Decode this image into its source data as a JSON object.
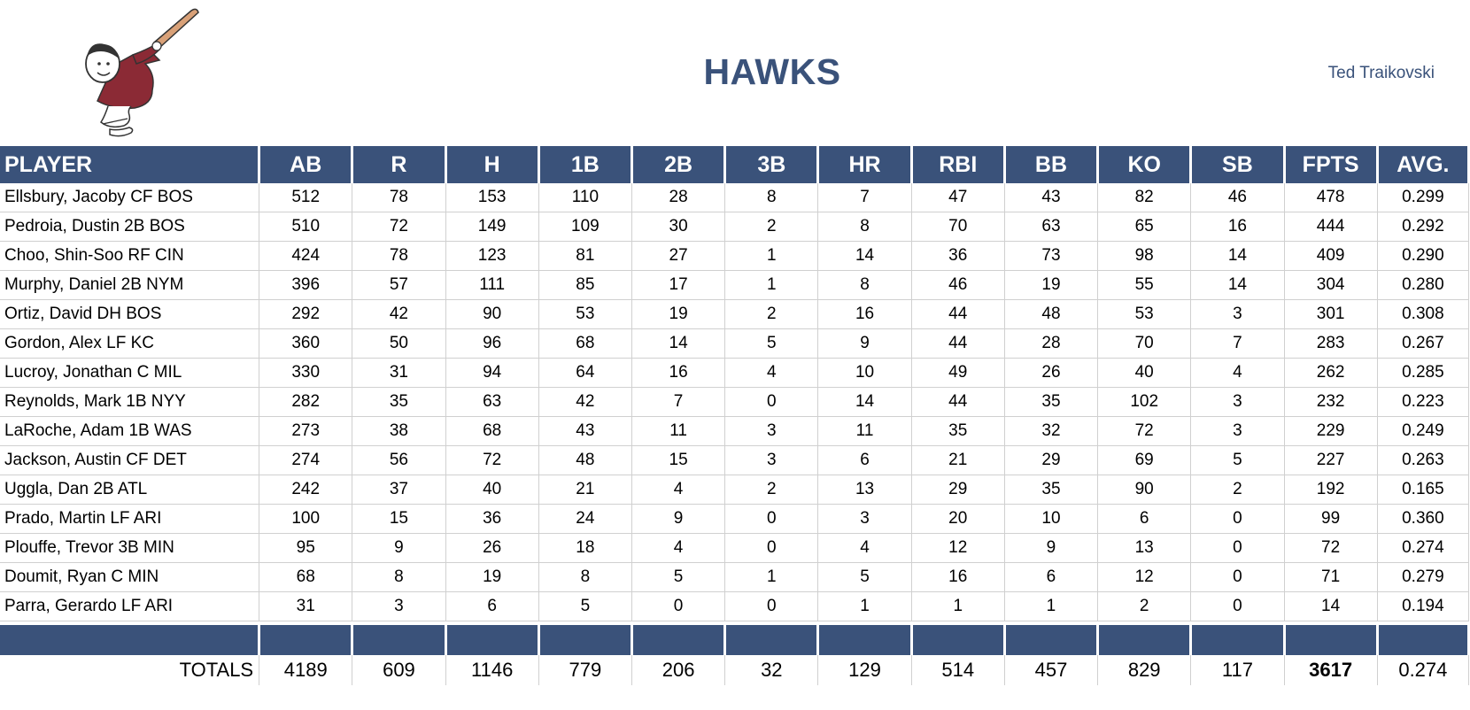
{
  "header": {
    "team_name": "HAWKS",
    "owner": "Ted Traikovski",
    "logo_icon": "friar-batter-mascot-icon"
  },
  "colors": {
    "header_blue": "#3a527a",
    "text_blue": "#3a527a",
    "logo_robe": "#8b2a35"
  },
  "table": {
    "columns": [
      "PLAYER",
      "AB",
      "R",
      "H",
      "1B",
      "2B",
      "3B",
      "HR",
      "RBI",
      "BB",
      "KO",
      "SB",
      "FPTS",
      "AVG."
    ],
    "rows": [
      [
        "Ellsbury, Jacoby CF BOS",
        "512",
        "78",
        "153",
        "110",
        "28",
        "8",
        "7",
        "47",
        "43",
        "82",
        "46",
        "478",
        "0.299"
      ],
      [
        "Pedroia, Dustin 2B BOS",
        "510",
        "72",
        "149",
        "109",
        "30",
        "2",
        "8",
        "70",
        "63",
        "65",
        "16",
        "444",
        "0.292"
      ],
      [
        "Choo, Shin-Soo RF CIN",
        "424",
        "78",
        "123",
        "81",
        "27",
        "1",
        "14",
        "36",
        "73",
        "98",
        "14",
        "409",
        "0.290"
      ],
      [
        "Murphy, Daniel 2B NYM",
        "396",
        "57",
        "111",
        "85",
        "17",
        "1",
        "8",
        "46",
        "19",
        "55",
        "14",
        "304",
        "0.280"
      ],
      [
        "Ortiz, David DH BOS",
        "292",
        "42",
        "90",
        "53",
        "19",
        "2",
        "16",
        "44",
        "48",
        "53",
        "3",
        "301",
        "0.308"
      ],
      [
        "Gordon, Alex LF KC",
        "360",
        "50",
        "96",
        "68",
        "14",
        "5",
        "9",
        "44",
        "28",
        "70",
        "7",
        "283",
        "0.267"
      ],
      [
        "Lucroy, Jonathan C MIL",
        "330",
        "31",
        "94",
        "64",
        "16",
        "4",
        "10",
        "49",
        "26",
        "40",
        "4",
        "262",
        "0.285"
      ],
      [
        "Reynolds, Mark 1B NYY",
        "282",
        "35",
        "63",
        "42",
        "7",
        "0",
        "14",
        "44",
        "35",
        "102",
        "3",
        "232",
        "0.223"
      ],
      [
        "LaRoche, Adam 1B WAS",
        "273",
        "38",
        "68",
        "43",
        "11",
        "3",
        "11",
        "35",
        "32",
        "72",
        "3",
        "229",
        "0.249"
      ],
      [
        "Jackson, Austin CF DET",
        "274",
        "56",
        "72",
        "48",
        "15",
        "3",
        "6",
        "21",
        "29",
        "69",
        "5",
        "227",
        "0.263"
      ],
      [
        "Uggla, Dan 2B ATL",
        "242",
        "37",
        "40",
        "21",
        "4",
        "2",
        "13",
        "29",
        "35",
        "90",
        "2",
        "192",
        "0.165"
      ],
      [
        "Prado, Martin LF ARI",
        "100",
        "15",
        "36",
        "24",
        "9",
        "0",
        "3",
        "20",
        "10",
        "6",
        "0",
        "99",
        "0.360"
      ],
      [
        "Plouffe, Trevor 3B MIN",
        "95",
        "9",
        "26",
        "18",
        "4",
        "0",
        "4",
        "12",
        "9",
        "13",
        "0",
        "72",
        "0.274"
      ],
      [
        "Doumit, Ryan C MIN",
        "68",
        "8",
        "19",
        "8",
        "5",
        "1",
        "5",
        "16",
        "6",
        "12",
        "0",
        "71",
        "0.279"
      ],
      [
        "Parra, Gerardo LF ARI",
        "31",
        "3",
        "6",
        "5",
        "0",
        "0",
        "1",
        "1",
        "1",
        "2",
        "0",
        "14",
        "0.194"
      ]
    ],
    "totals": [
      "TOTALS",
      "4189",
      "609",
      "1146",
      "779",
      "206",
      "32",
      "129",
      "514",
      "457",
      "829",
      "117",
      "3617",
      "0.274"
    ]
  }
}
